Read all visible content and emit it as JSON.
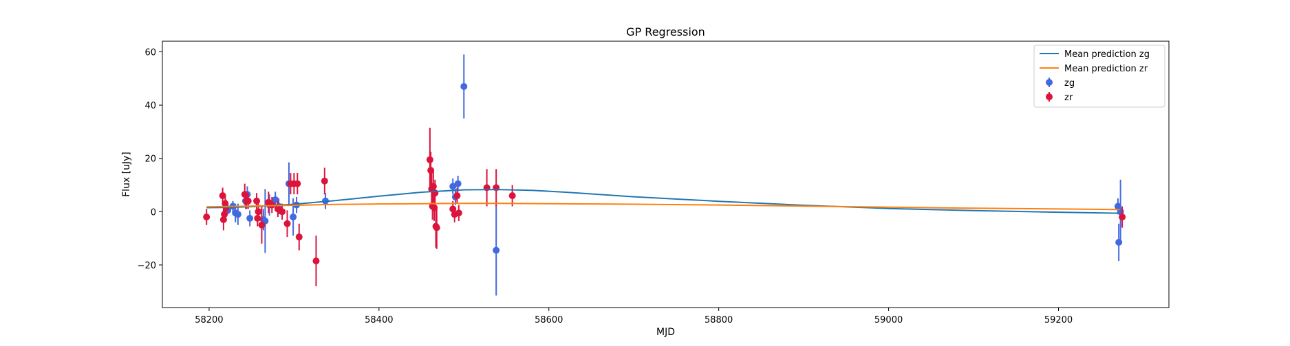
{
  "chart_data": {
    "type": "scatter",
    "title": "GP Regression",
    "xlabel": "MJD",
    "ylabel": "Flux [uJy]",
    "xlim": [
      58145,
      59330
    ],
    "ylim": [
      -36,
      64
    ],
    "xticks": [
      58200,
      58400,
      58600,
      58800,
      59000,
      59200
    ],
    "yticks": [
      -20,
      0,
      20,
      40,
      60
    ],
    "grid": false,
    "legend_position": "top-right",
    "lines": [
      {
        "name": "Mean prediction zg",
        "color": "#1f77b4",
        "x": [
          58197,
          58225,
          58260,
          58300,
          58350,
          58400,
          58450,
          58500,
          58540,
          58580,
          58620,
          58700,
          58800,
          58900,
          59000,
          59100,
          59200,
          59272
        ],
        "y": [
          1.5,
          1.6,
          2.0,
          2.8,
          4.2,
          5.8,
          7.3,
          8.2,
          8.3,
          8.0,
          7.3,
          5.6,
          3.9,
          2.4,
          1.2,
          0.4,
          -0.2,
          -0.6
        ]
      },
      {
        "name": "Mean prediction zr",
        "color": "#ff7f0e",
        "x": [
          58197,
          58250,
          58300,
          58350,
          58400,
          58450,
          58500,
          58550,
          58600,
          58700,
          58800,
          58900,
          59000,
          59100,
          59200,
          59272
        ],
        "y": [
          1.8,
          2.1,
          2.4,
          2.7,
          2.9,
          3.0,
          3.1,
          3.1,
          3.0,
          2.8,
          2.5,
          2.1,
          1.7,
          1.3,
          1.0,
          0.8
        ]
      }
    ],
    "points": [
      {
        "name": "zg",
        "color": "#4169e1",
        "x": [
          58222,
          58228,
          58231,
          58234,
          58243,
          58245,
          58248,
          58264,
          58266,
          58271,
          58278,
          58282,
          58294,
          58299,
          58303,
          58337,
          58487,
          58490,
          58493,
          58500,
          58538,
          59270,
          59271,
          59273
        ],
        "y": [
          0.5,
          2,
          -0.5,
          -1,
          4,
          6.5,
          -2.5,
          -3,
          -3.5,
          2.5,
          4.5,
          2,
          10.5,
          -2,
          2.5,
          4,
          9.5,
          5.5,
          10.5,
          47,
          -14.5,
          2,
          -11.5,
          0
        ],
        "err": [
          1.5,
          2,
          3.5,
          4,
          3,
          3,
          3,
          4,
          12,
          4,
          3,
          3,
          8,
          7,
          3,
          3,
          3,
          3,
          3,
          12,
          17,
          3,
          7,
          12
        ]
      },
      {
        "name": "zr",
        "color": "#dc143c",
        "x": [
          58197,
          58216,
          58217,
          58218,
          58219,
          58220,
          58242,
          58244,
          58246,
          58256,
          58257,
          58258,
          58262,
          58270,
          58274,
          58281,
          58286,
          58292,
          58296,
          58300,
          58304,
          58306,
          58326,
          58336,
          58460,
          58461,
          58462,
          58463,
          58464,
          58465,
          58466,
          58467,
          58468,
          58487,
          58489,
          58492,
          58494,
          58527,
          58538,
          58557,
          59275
        ],
        "y": [
          -2,
          6,
          -3,
          -1,
          3,
          1.5,
          6.5,
          4,
          4,
          4,
          -2.5,
          0,
          -5,
          3.5,
          2.5,
          1,
          0,
          -4.5,
          10.5,
          10.5,
          10.5,
          -9.5,
          -18.5,
          11.5,
          19.5,
          15.5,
          8.5,
          2,
          9.5,
          1.5,
          7,
          -5.5,
          -6,
          1,
          -1,
          6,
          -0.5,
          9,
          9,
          6,
          -2
        ],
        "err": [
          3,
          3,
          4,
          3,
          3,
          3,
          4,
          3,
          3,
          3,
          3,
          3,
          7,
          4,
          3,
          3,
          3,
          5,
          4,
          4,
          4,
          5,
          9.5,
          5,
          12,
          7,
          6,
          5,
          6,
          5,
          5,
          8,
          8,
          3,
          3,
          3,
          3,
          7,
          7,
          4,
          4
        ]
      }
    ]
  }
}
